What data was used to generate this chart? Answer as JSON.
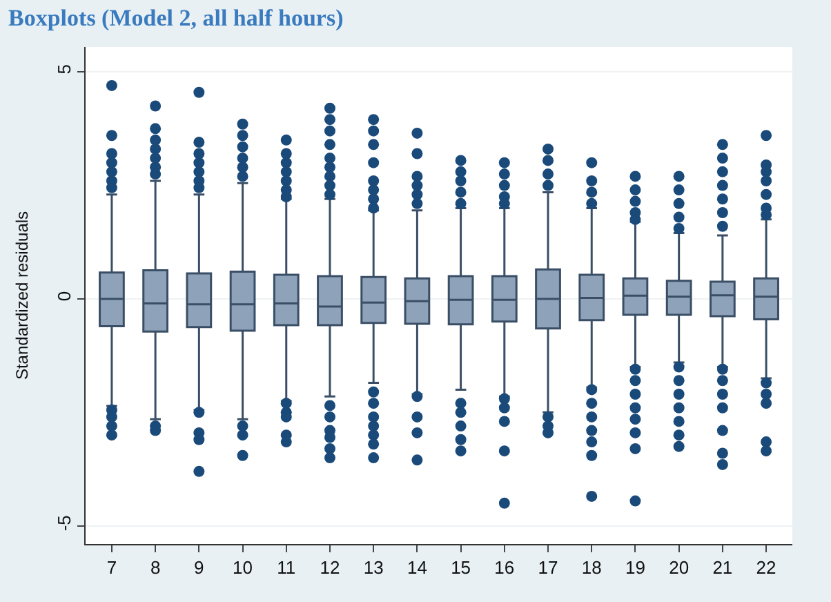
{
  "chart_data": {
    "type": "box",
    "title": "Boxplots (Model 2, all half hours)",
    "ylabel": "Standardized residuals",
    "categories": [
      "7",
      "8",
      "9",
      "10",
      "11",
      "12",
      "13",
      "14",
      "15",
      "16",
      "17",
      "18",
      "19",
      "20",
      "21",
      "22"
    ],
    "ylim": [
      -5.4,
      5.55
    ],
    "yticks": [
      -5,
      0,
      5
    ],
    "grid": "y",
    "color": "#8ea2b9",
    "boxes": [
      {
        "low": -2.36,
        "q1": -0.6,
        "median": 0,
        "q3": 0.58,
        "high": 2.3,
        "outliers": [
          4.7,
          3.6,
          3.2,
          3.0,
          2.8,
          2.6,
          2.45,
          -2.45,
          -2.6,
          -2.8,
          -3.0
        ]
      },
      {
        "low": -2.65,
        "q1": -0.72,
        "median": -0.1,
        "q3": 0.63,
        "high": 2.6,
        "outliers": [
          4.25,
          3.75,
          3.5,
          3.3,
          3.1,
          2.9,
          2.75,
          -2.8,
          -2.9
        ]
      },
      {
        "low": -2.45,
        "q1": -0.62,
        "median": -0.12,
        "q3": 0.56,
        "high": 2.3,
        "outliers": [
          4.55,
          3.45,
          3.2,
          3.0,
          2.8,
          2.6,
          2.45,
          -2.5,
          -2.95,
          -3.1,
          -3.8
        ]
      },
      {
        "low": -2.65,
        "q1": -0.7,
        "median": -0.12,
        "q3": 0.6,
        "high": 2.55,
        "outliers": [
          3.85,
          3.6,
          3.35,
          3.1,
          2.9,
          2.7,
          -2.8,
          -3.0,
          -3.45
        ]
      },
      {
        "low": -2.25,
        "q1": -0.58,
        "median": -0.1,
        "q3": 0.53,
        "high": 2.2,
        "outliers": [
          3.5,
          3.2,
          3.0,
          2.8,
          2.6,
          2.4,
          2.25,
          -2.3,
          -2.5,
          -2.6,
          -3.0,
          -3.15
        ]
      },
      {
        "low": -2.15,
        "q1": -0.58,
        "median": -0.17,
        "q3": 0.5,
        "high": 2.2,
        "outliers": [
          4.2,
          3.95,
          3.7,
          3.4,
          3.1,
          2.9,
          2.7,
          2.5,
          2.3,
          -2.35,
          -2.6,
          -2.9,
          -3.05,
          -3.3,
          -3.5
        ]
      },
      {
        "low": -1.85,
        "q1": -0.53,
        "median": -0.08,
        "q3": 0.48,
        "high": 1.95,
        "outliers": [
          3.95,
          3.7,
          3.4,
          3.0,
          2.6,
          2.4,
          2.2,
          2.0,
          -2.05,
          -2.3,
          -2.6,
          -2.8,
          -3.0,
          -3.2,
          -3.5
        ]
      },
      {
        "low": -2.1,
        "q1": -0.55,
        "median": -0.05,
        "q3": 0.45,
        "high": 1.95,
        "outliers": [
          3.65,
          3.2,
          2.7,
          2.5,
          2.3,
          2.1,
          -2.15,
          -2.6,
          -2.95,
          -3.55
        ]
      },
      {
        "low": -2.0,
        "q1": -0.56,
        "median": -0.02,
        "q3": 0.5,
        "high": 2.0,
        "outliers": [
          3.05,
          2.8,
          2.6,
          2.35,
          2.1,
          -2.3,
          -2.5,
          -2.8,
          -3.1,
          -3.35
        ]
      },
      {
        "low": -2.15,
        "q1": -0.5,
        "median": -0.02,
        "q3": 0.5,
        "high": 2.0,
        "outliers": [
          3.0,
          2.75,
          2.5,
          2.25,
          2.1,
          -2.2,
          -2.4,
          -2.7,
          -3.35,
          -4.5
        ]
      },
      {
        "low": -2.5,
        "q1": -0.65,
        "median": 0,
        "q3": 0.65,
        "high": 2.35,
        "outliers": [
          3.3,
          3.05,
          2.75,
          2.5,
          -2.6,
          -2.8,
          -2.95
        ]
      },
      {
        "low": -1.95,
        "q1": -0.47,
        "median": 0.02,
        "q3": 0.53,
        "high": 2.0,
        "outliers": [
          3.0,
          2.6,
          2.35,
          2.1,
          -2.0,
          -2.3,
          -2.6,
          -2.9,
          -3.15,
          -3.45,
          -4.35
        ]
      },
      {
        "low": -1.5,
        "q1": -0.35,
        "median": 0.07,
        "q3": 0.45,
        "high": 1.7,
        "outliers": [
          2.7,
          2.4,
          2.15,
          1.9,
          1.75,
          -1.55,
          -1.8,
          -2.1,
          -2.4,
          -2.65,
          -2.95,
          -3.3,
          -4.45
        ]
      },
      {
        "low": -1.4,
        "q1": -0.35,
        "median": 0.05,
        "q3": 0.4,
        "high": 1.45,
        "outliers": [
          2.7,
          2.4,
          2.1,
          1.8,
          1.55,
          -1.5,
          -1.8,
          -2.1,
          -2.4,
          -2.7,
          -3.0,
          -3.25
        ]
      },
      {
        "low": -1.5,
        "q1": -0.38,
        "median": 0.08,
        "q3": 0.38,
        "high": 1.4,
        "outliers": [
          3.4,
          3.1,
          2.8,
          2.5,
          2.2,
          1.9,
          1.6,
          -1.55,
          -1.8,
          -2.1,
          -2.4,
          -2.9,
          -3.4,
          -3.65
        ]
      },
      {
        "low": -1.75,
        "q1": -0.45,
        "median": 0.05,
        "q3": 0.45,
        "high": 1.75,
        "outliers": [
          3.6,
          2.95,
          2.8,
          2.6,
          2.3,
          2.0,
          1.85,
          -1.85,
          -2.1,
          -2.3,
          -3.15,
          -3.35
        ]
      }
    ]
  }
}
